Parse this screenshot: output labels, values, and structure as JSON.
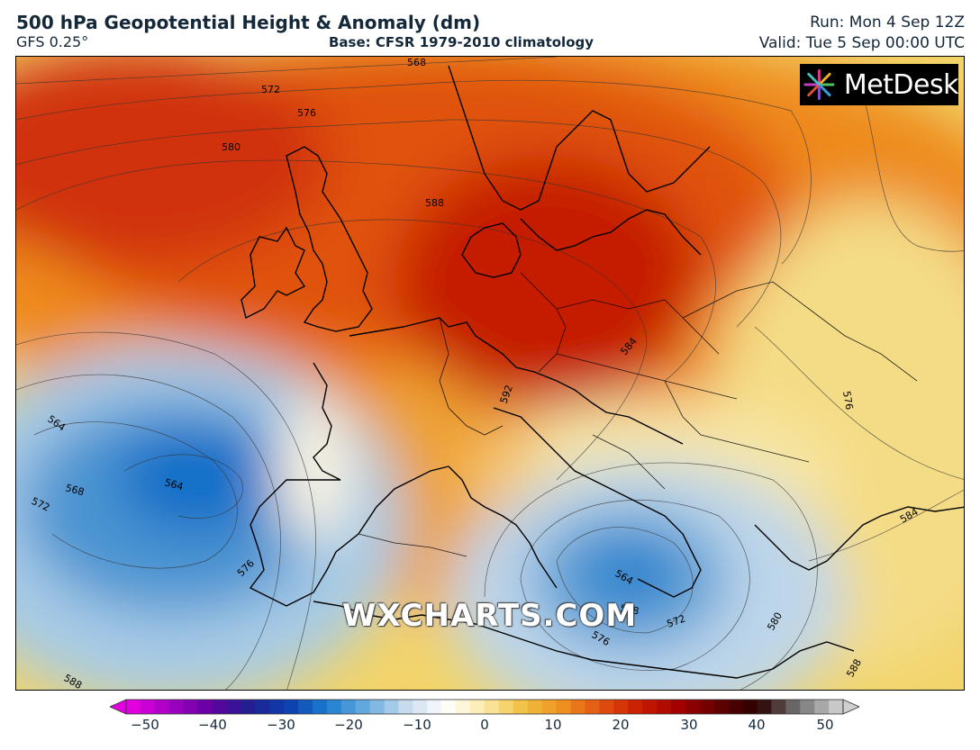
{
  "header": {
    "title": "500 hPa Geopotential Height & Anomaly (dm)",
    "model": "GFS 0.25°",
    "base": "Base: CFSR 1979-2010 climatology",
    "run": "Run: Mon 4 Sep 12Z",
    "valid": "Valid: Tue 5 Sep 00:00 UTC"
  },
  "logo": {
    "text": "MetDesk"
  },
  "watermark": "WXCHARTS.COM",
  "contour_labels": [
    "568",
    "572",
    "576",
    "580",
    "588",
    "584",
    "592",
    "564",
    "568",
    "572",
    "564",
    "576",
    "564",
    "568",
    "572",
    "576",
    "580",
    "588",
    "584",
    "588",
    "576"
  ],
  "colorbar": {
    "ticks": [
      "−50",
      "−40",
      "−30",
      "−20",
      "−10",
      "0",
      "10",
      "20",
      "30",
      "40",
      "50"
    ],
    "colors": [
      "#e000e0",
      "#a000c0",
      "#6000a0",
      "#202090",
      "#0a40b0",
      "#1f7fd0",
      "#6aaee0",
      "#c8dcee",
      "#ffffff",
      "#fbeaa8",
      "#f0c040",
      "#ee9020",
      "#e05010",
      "#c81a00",
      "#a00000",
      "#600000",
      "#2a0000",
      "#707070",
      "#c8c8c8"
    ]
  },
  "colors": {
    "warm_core": "#c51a00",
    "cold_core": "#0a6ec8",
    "frame": "#000000"
  }
}
